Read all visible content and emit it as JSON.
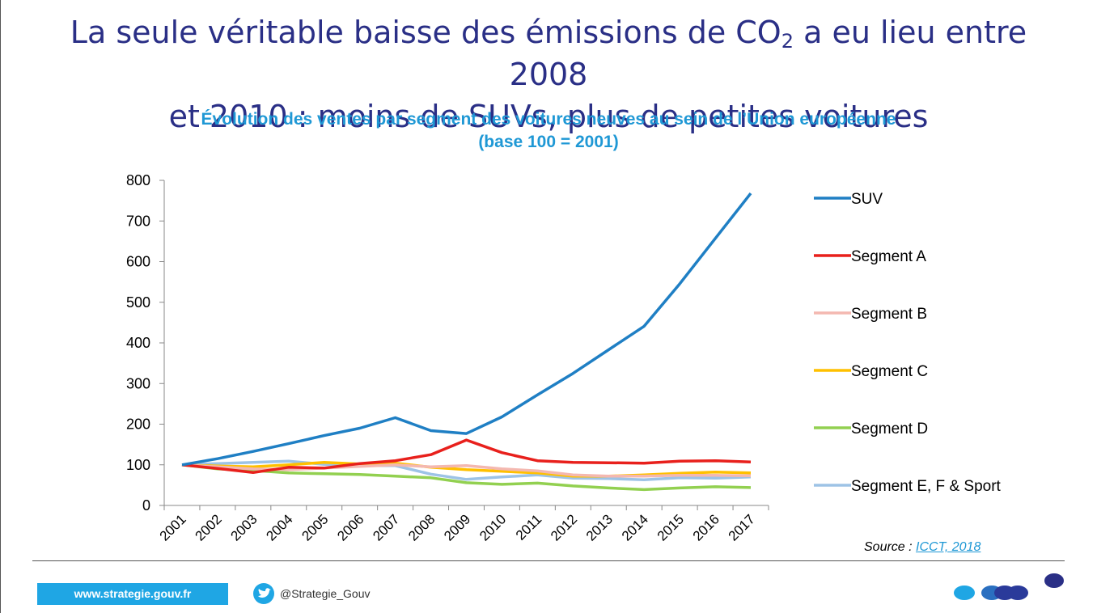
{
  "header": {
    "title_line1_pre": "La seule véritable baisse des émissions de CO",
    "title_sub": "2",
    "title_line1_post": " a eu lieu entre 2008",
    "title_line2": "et 2010 : moins de SUVs, plus de petites voitures"
  },
  "chart_data": {
    "type": "line",
    "title": "Évolution des ventes par segment des voitures neuves au sein de l’Union européenne",
    "subtitle": "(base 100 = 2001)",
    "xlabel": "",
    "ylabel": "",
    "ylim": [
      0,
      800
    ],
    "yticks": [
      0,
      100,
      200,
      300,
      400,
      500,
      600,
      700,
      800
    ],
    "x": [
      "2001",
      "2002",
      "2003",
      "2004",
      "2005",
      "2006",
      "2007",
      "2008",
      "2009",
      "2010",
      "2011",
      "2012",
      "2013",
      "2014",
      "2015",
      "2016",
      "2017"
    ],
    "legend_position": "right",
    "series": [
      {
        "name": "SUV",
        "color": "#1f7fc4",
        "values": [
          100,
          115,
          133,
          152,
          172,
          190,
          216,
          184,
          177,
          218,
          272,
          325,
          383,
          441,
          545,
          657,
          768
        ]
      },
      {
        "name": "Segment A",
        "color": "#e8201c",
        "values": [
          100,
          91,
          81,
          94,
          92,
          103,
          110,
          125,
          161,
          130,
          110,
          106,
          105,
          104,
          109,
          110,
          107
        ]
      },
      {
        "name": "Segment B",
        "color": "#f4b8b0",
        "values": [
          100,
          95,
          90,
          88,
          92,
          96,
          100,
          95,
          98,
          90,
          85,
          75,
          72,
          72,
          74,
          74,
          73
        ]
      },
      {
        "name": "Segment C",
        "color": "#ffc000",
        "values": [
          100,
          97,
          95,
          100,
          106,
          102,
          104,
          94,
          88,
          84,
          80,
          72,
          72,
          75,
          79,
          82,
          80
        ]
      },
      {
        "name": "Segment D",
        "color": "#92d050",
        "values": [
          100,
          90,
          86,
          80,
          78,
          76,
          72,
          68,
          56,
          52,
          55,
          48,
          43,
          39,
          43,
          46,
          44
        ]
      },
      {
        "name": "Segment E, F & Sport",
        "color": "#9dc3e6",
        "values": [
          100,
          103,
          106,
          109,
          101,
          98,
          98,
          77,
          64,
          70,
          75,
          67,
          66,
          63,
          68,
          67,
          70
        ]
      }
    ]
  },
  "source": {
    "prefix": "Source : ",
    "link": "ICCT, 2018"
  },
  "footer": {
    "website": "www.strategie.gouv.fr",
    "twitter": "@Strategie_Gouv"
  },
  "colors": {
    "title": "#2a2f86",
    "subtitle": "#1f98d5",
    "footer_bar": "#1fa6e4"
  },
  "icons": {
    "twitter": "twitter-bird-icon",
    "logo": "france-strategie-logo"
  }
}
